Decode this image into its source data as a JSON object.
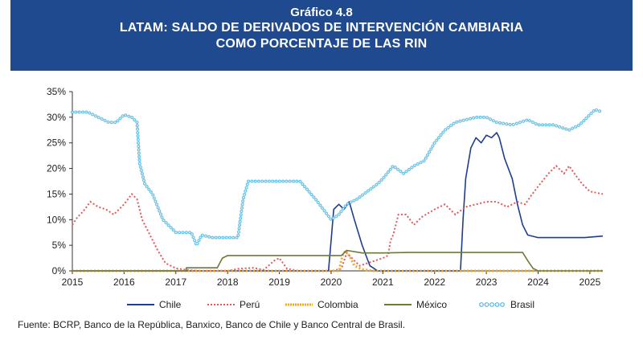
{
  "header": {
    "label": "Gráfico 4.8",
    "title_line1": "LATAM: SALDO DE DERIVADOS DE INTERVENCIÓN CAMBIARIA",
    "title_line2": "COMO PORCENTAJE DE LAS RIN"
  },
  "source": "Fuente: BCRP, Banco de la República, Banxico, Banco de Chile y Banco Central de Brasil.",
  "chart_data": {
    "type": "line",
    "title": "LATAM: SALDO DE DERIVADOS DE INTERVENCIÓN CAMBIARIA COMO PORCENTAJE DE LAS RIN",
    "xlabel": "",
    "ylabel": "",
    "xlim": [
      2015,
      2025.25
    ],
    "ylim": [
      0,
      35
    ],
    "x_ticks": [
      "2015",
      "2016",
      "2017",
      "2018",
      "2019",
      "2020",
      "2021",
      "2022",
      "2023",
      "2024",
      "2025"
    ],
    "y_ticks": [
      "0%",
      "5%",
      "10%",
      "15%",
      "20%",
      "25%",
      "30%",
      "35%"
    ],
    "grid": false,
    "legend_position": "bottom",
    "series": [
      {
        "name": "Chile",
        "color": "#1f3d8f",
        "style": "solid",
        "points": [
          [
            2015,
            0
          ],
          [
            2019.95,
            0
          ],
          [
            2020.0,
            6
          ],
          [
            2020.05,
            12
          ],
          [
            2020.15,
            13
          ],
          [
            2020.25,
            12
          ],
          [
            2020.35,
            13.5
          ],
          [
            2020.45,
            10
          ],
          [
            2020.6,
            5
          ],
          [
            2020.75,
            1
          ],
          [
            2020.9,
            0
          ],
          [
            2022.5,
            0
          ],
          [
            2022.55,
            10
          ],
          [
            2022.6,
            18
          ],
          [
            2022.7,
            24
          ],
          [
            2022.8,
            26
          ],
          [
            2022.9,
            25
          ],
          [
            2023.0,
            26.5
          ],
          [
            2023.1,
            26
          ],
          [
            2023.2,
            27
          ],
          [
            2023.25,
            26
          ],
          [
            2023.35,
            22
          ],
          [
            2023.5,
            18
          ],
          [
            2023.6,
            13
          ],
          [
            2023.7,
            9
          ],
          [
            2023.8,
            7
          ],
          [
            2024.0,
            6.5
          ],
          [
            2024.5,
            6.5
          ],
          [
            2024.9,
            6.5
          ],
          [
            2025.25,
            6.8
          ]
        ]
      },
      {
        "name": "Perú",
        "color": "#e05a5a",
        "style": "dotted",
        "points": [
          [
            2015,
            9
          ],
          [
            2015.1,
            10.5
          ],
          [
            2015.2,
            11.5
          ],
          [
            2015.35,
            13.5
          ],
          [
            2015.5,
            12.5
          ],
          [
            2015.65,
            12
          ],
          [
            2015.8,
            11
          ],
          [
            2016.0,
            13
          ],
          [
            2016.15,
            15
          ],
          [
            2016.25,
            14
          ],
          [
            2016.35,
            10
          ],
          [
            2016.5,
            7
          ],
          [
            2016.65,
            4
          ],
          [
            2016.8,
            1.5
          ],
          [
            2017.0,
            0.5
          ],
          [
            2017.2,
            0.2
          ],
          [
            2017.5,
            0
          ],
          [
            2018.0,
            0
          ],
          [
            2018.2,
            0.4
          ],
          [
            2018.5,
            0.6
          ],
          [
            2018.7,
            0.2
          ],
          [
            2018.9,
            2
          ],
          [
            2019.0,
            2.5
          ],
          [
            2019.15,
            0.4
          ],
          [
            2019.4,
            0
          ],
          [
            2020.0,
            0
          ],
          [
            2020.2,
            0.4
          ],
          [
            2020.3,
            3.5
          ],
          [
            2020.4,
            2.5
          ],
          [
            2020.55,
            1
          ],
          [
            2020.7,
            1.5
          ],
          [
            2020.85,
            2
          ],
          [
            2021.0,
            2.5
          ],
          [
            2021.1,
            3
          ],
          [
            2021.15,
            6
          ],
          [
            2021.2,
            7
          ],
          [
            2021.3,
            11
          ],
          [
            2021.45,
            11
          ],
          [
            2021.6,
            9
          ],
          [
            2021.75,
            10.5
          ],
          [
            2022.0,
            12
          ],
          [
            2022.2,
            13
          ],
          [
            2022.4,
            11
          ],
          [
            2022.6,
            12.5
          ],
          [
            2022.8,
            13
          ],
          [
            2023.0,
            13.5
          ],
          [
            2023.2,
            13.5
          ],
          [
            2023.4,
            12.5
          ],
          [
            2023.6,
            13.5
          ],
          [
            2023.75,
            13
          ],
          [
            2023.85,
            14.5
          ],
          [
            2024.0,
            16.5
          ],
          [
            2024.2,
            19
          ],
          [
            2024.35,
            20.5
          ],
          [
            2024.5,
            19
          ],
          [
            2024.6,
            20.5
          ],
          [
            2024.7,
            19
          ],
          [
            2024.85,
            17
          ],
          [
            2025.0,
            15.5
          ],
          [
            2025.25,
            15
          ]
        ]
      },
      {
        "name": "Colombia",
        "color": "#f5a623",
        "style": "dotted",
        "points": [
          [
            2015,
            0
          ],
          [
            2020.15,
            0
          ],
          [
            2020.22,
            3
          ],
          [
            2020.28,
            4
          ],
          [
            2020.35,
            3
          ],
          [
            2020.45,
            1
          ],
          [
            2020.6,
            0.3
          ],
          [
            2020.8,
            0
          ],
          [
            2025.25,
            0
          ]
        ]
      },
      {
        "name": "México",
        "color": "#6b7a3a",
        "style": "solid",
        "points": [
          [
            2015,
            0
          ],
          [
            2017.2,
            0
          ],
          [
            2017.2,
            0.6
          ],
          [
            2017.8,
            0.6
          ],
          [
            2017.9,
            2.5
          ],
          [
            2018.0,
            3
          ],
          [
            2020.2,
            3
          ],
          [
            2020.3,
            4
          ],
          [
            2020.6,
            3.5
          ],
          [
            2021.0,
            3.5
          ],
          [
            2021.5,
            3.6
          ],
          [
            2022.0,
            3.6
          ],
          [
            2023.0,
            3.6
          ],
          [
            2023.7,
            3.6
          ],
          [
            2023.8,
            2
          ],
          [
            2023.9,
            0.5
          ],
          [
            2024.0,
            0
          ],
          [
            2025.25,
            0
          ]
        ]
      },
      {
        "name": "Brasil",
        "color": "#4fb6e0",
        "style": "circles",
        "points": [
          [
            2015,
            31
          ],
          [
            2015.3,
            31
          ],
          [
            2015.5,
            30
          ],
          [
            2015.7,
            29
          ],
          [
            2015.85,
            29
          ],
          [
            2016.0,
            30.5
          ],
          [
            2016.15,
            30
          ],
          [
            2016.25,
            29
          ],
          [
            2016.3,
            21
          ],
          [
            2016.4,
            17
          ],
          [
            2016.55,
            15
          ],
          [
            2016.75,
            10
          ],
          [
            2017.0,
            7.5
          ],
          [
            2017.3,
            7.5
          ],
          [
            2017.4,
            5
          ],
          [
            2017.5,
            7
          ],
          [
            2017.7,
            6.5
          ],
          [
            2018.0,
            6.5
          ],
          [
            2018.2,
            6.5
          ],
          [
            2018.3,
            14
          ],
          [
            2018.4,
            17.5
          ],
          [
            2018.6,
            17.5
          ],
          [
            2019.0,
            17.5
          ],
          [
            2019.4,
            17.5
          ],
          [
            2019.7,
            14
          ],
          [
            2019.85,
            12
          ],
          [
            2020.0,
            10
          ],
          [
            2020.15,
            11
          ],
          [
            2020.3,
            13
          ],
          [
            2020.5,
            14
          ],
          [
            2020.7,
            15.5
          ],
          [
            2020.9,
            17
          ],
          [
            2021.0,
            18
          ],
          [
            2021.2,
            20.5
          ],
          [
            2021.4,
            19
          ],
          [
            2021.6,
            20.5
          ],
          [
            2021.8,
            21.5
          ],
          [
            2022.0,
            25
          ],
          [
            2022.2,
            27.5
          ],
          [
            2022.4,
            29
          ],
          [
            2022.6,
            29.5
          ],
          [
            2022.8,
            30
          ],
          [
            2023.0,
            30
          ],
          [
            2023.2,
            29
          ],
          [
            2023.5,
            28.5
          ],
          [
            2023.8,
            29.5
          ],
          [
            2024.0,
            28.5
          ],
          [
            2024.3,
            28.5
          ],
          [
            2024.6,
            27.5
          ],
          [
            2024.8,
            28.5
          ],
          [
            2025.0,
            30.5
          ],
          [
            2025.1,
            31.5
          ],
          [
            2025.25,
            31
          ]
        ]
      }
    ]
  }
}
